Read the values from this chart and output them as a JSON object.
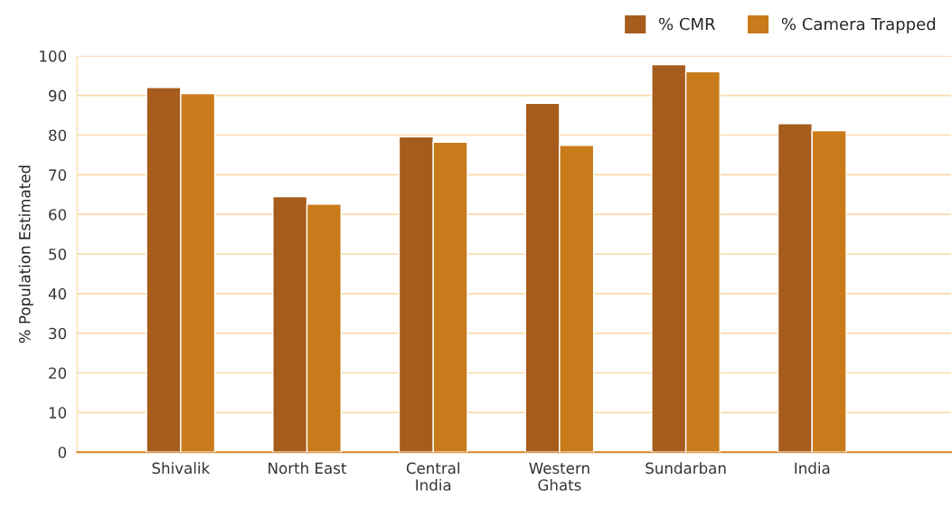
{
  "chart_data": {
    "type": "bar",
    "ylabel": "% Population Estimated",
    "categories": [
      "Shivalik",
      "North East",
      "Central\nIndia",
      "Western\nGhats",
      "Sundarban",
      "India"
    ],
    "series": [
      {
        "name": "% CMR",
        "color": "#a65c1c",
        "values": [
          92,
          64.5,
          79.6,
          88,
          97.8,
          82.9
        ]
      },
      {
        "name": "% Camera Trapped",
        "color": "#c97b1b",
        "values": [
          90.5,
          62.6,
          78.2,
          77.4,
          96,
          81.1
        ]
      }
    ],
    "ylim": [
      0,
      100
    ],
    "yticks": [
      0,
      10,
      20,
      30,
      40,
      50,
      60,
      70,
      80,
      90,
      100
    ],
    "grid": "y",
    "legend": "top right"
  }
}
